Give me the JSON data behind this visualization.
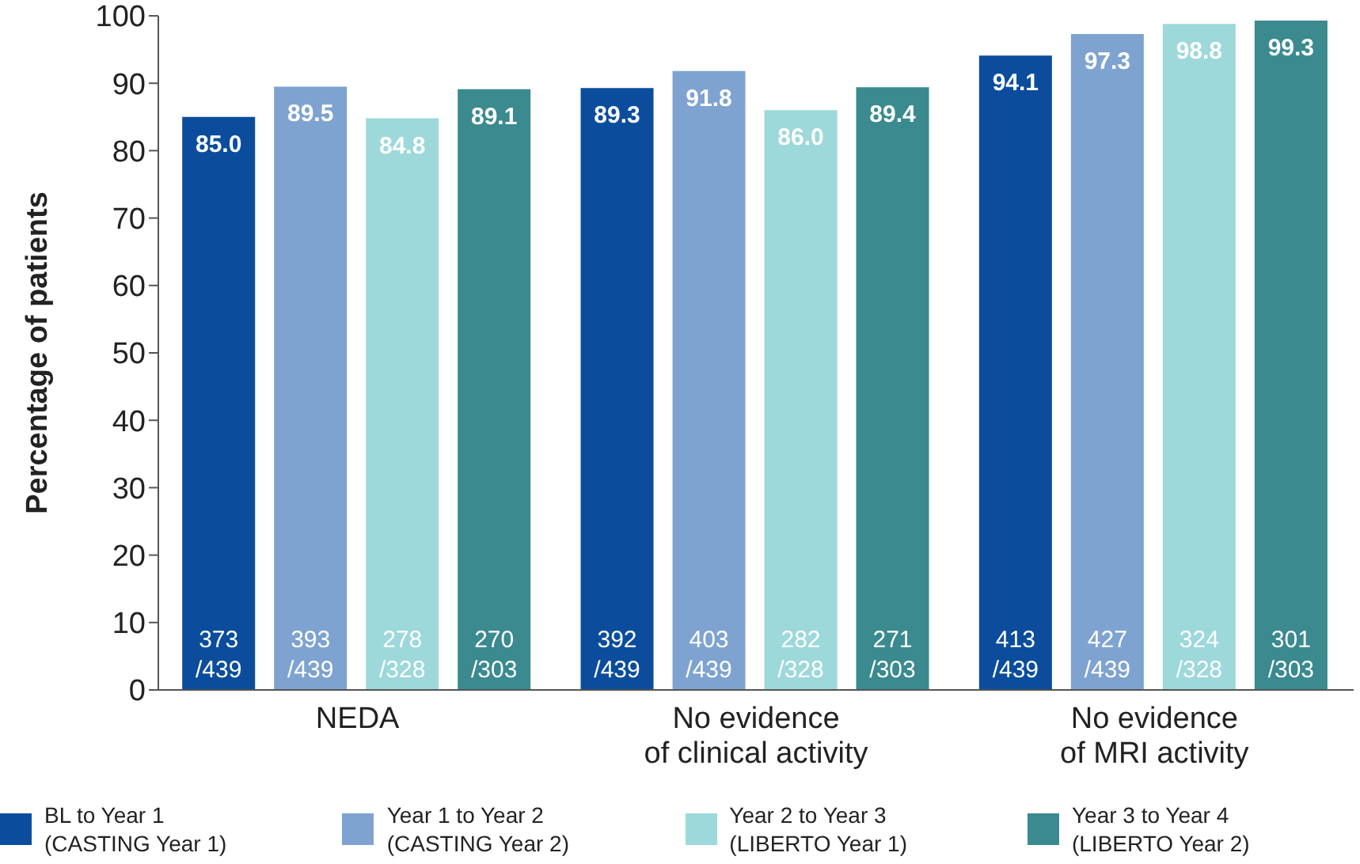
{
  "chart_data": {
    "type": "bar",
    "ylabel": "Percentage of patients",
    "categories": [
      "NEDA",
      "No evidence\nof clinical activity",
      "No evidence\nof MRI activity"
    ],
    "series": [
      {
        "name": "BL to Year 1\n(CASTING Year 1)",
        "color": "#0b4d9c",
        "values": [
          85.0,
          89.3,
          94.1
        ],
        "value_labels": [
          "85.0",
          "89.3",
          "94.1"
        ]
      },
      {
        "name": "Year 1 to Year 2\n(CASTING Year 2)",
        "color": "#7fa3d0",
        "values": [
          89.5,
          91.8,
          97.3
        ],
        "value_labels": [
          "89.5",
          "91.8",
          "97.3"
        ]
      },
      {
        "name": "Year 2 to Year 3\n(LIBERTO Year 1)",
        "color": "#9dd8db",
        "values": [
          84.8,
          86.0,
          98.8
        ],
        "value_labels": [
          "84.8",
          "86.0",
          "98.8"
        ]
      },
      {
        "name": "Year 3 to Year 4\n(LIBERTO Year 2)",
        "color": "#3a8a8f",
        "values": [
          89.1,
          89.4,
          99.3
        ],
        "value_labels": [
          "89.1",
          "89.4",
          "99.3"
        ]
      }
    ],
    "annotations": [
      "373\n/439",
      "393\n/439",
      "278\n/328",
      "270\n/303",
      "392\n/439",
      "403\n/439",
      "282\n/328",
      "271\n/303",
      "413\n/439",
      "427\n/439",
      "324\n/328",
      "301\n/303"
    ],
    "ylim": [
      0,
      100
    ],
    "yticks": [
      0,
      10,
      20,
      30,
      40,
      50,
      60,
      70,
      80,
      90,
      100
    ],
    "grid": false,
    "legend": "bottom"
  }
}
